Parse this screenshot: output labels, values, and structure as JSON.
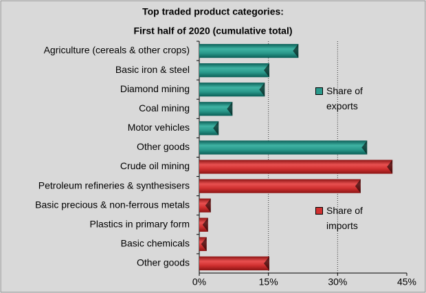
{
  "chart_data": {
    "type": "bar",
    "orientation": "horizontal",
    "title": "Top traded product categories:",
    "subtitle": "First half of 2020 (cumulative total)",
    "categories": [
      "Agriculture (cereals & other crops)",
      "Basic iron & steel",
      "Diamond mining",
      "Coal mining",
      "Motor vehicles",
      "Other goods",
      "Crude oil mining",
      "Petroleum refineries & synthesisers",
      "Basic precious & non-ferrous metals",
      "Plastics in primary form",
      "Basic chemicals",
      "Other goods"
    ],
    "series": [
      {
        "name": "Share of exports",
        "color": "#2a9a8c",
        "values": [
          21.5,
          15.2,
          14.2,
          7.2,
          4.2,
          36.4,
          null,
          null,
          null,
          null,
          null,
          null
        ]
      },
      {
        "name": "Share of imports",
        "color": "#d03030",
        "values": [
          null,
          null,
          null,
          null,
          null,
          null,
          41.9,
          35.0,
          2.5,
          1.9,
          1.6,
          15.2
        ]
      }
    ],
    "xlim": [
      0,
      45
    ],
    "xticks": [
      {
        "value": 0,
        "label": "0%"
      },
      {
        "value": 15,
        "label": "15%"
      },
      {
        "value": 30,
        "label": "30%"
      },
      {
        "value": 45,
        "label": "45%"
      }
    ],
    "grid": true
  }
}
